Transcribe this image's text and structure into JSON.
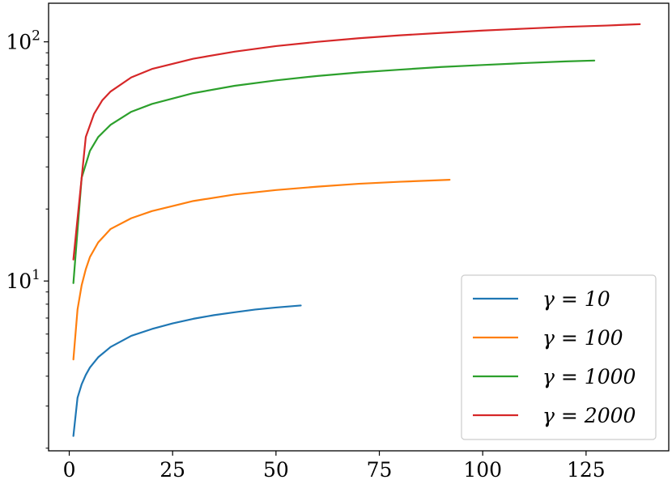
{
  "chart_data": {
    "type": "line",
    "title": "",
    "xlabel": "",
    "ylabel": "",
    "xlim": [
      -5,
      145
    ],
    "ylim": [
      1.95,
      145
    ],
    "yscale": "log",
    "x_ticks": [
      {
        "value": 0,
        "label": "0"
      },
      {
        "value": 25,
        "label": "25"
      },
      {
        "value": 50,
        "label": "50"
      },
      {
        "value": 75,
        "label": "75"
      },
      {
        "value": 100,
        "label": "100"
      },
      {
        "value": 125,
        "label": "125"
      }
    ],
    "y_major_ticks": [
      {
        "value": 10,
        "base": "10",
        "exp": "1"
      },
      {
        "value": 100,
        "base": "10",
        "exp": "2"
      }
    ],
    "y_minor_ticks": [
      2,
      3,
      4,
      5,
      6,
      7,
      8,
      9,
      20,
      30,
      40,
      50,
      60,
      70,
      80,
      90
    ],
    "grid": false,
    "legend_position": "bottom-right",
    "series": [
      {
        "name": "γ = 10",
        "color": "#1f77b4",
        "x": [
          1,
          2,
          3,
          4,
          5,
          7,
          10,
          15,
          20,
          25,
          30,
          35,
          40,
          45,
          50,
          56
        ],
        "y": [
          2.25,
          3.25,
          3.7,
          4.05,
          4.35,
          4.8,
          5.3,
          5.9,
          6.3,
          6.65,
          6.95,
          7.2,
          7.4,
          7.6,
          7.75,
          7.9
        ]
      },
      {
        "name": "γ = 100",
        "color": "#ff7f0e",
        "x": [
          1,
          2,
          3,
          4,
          5,
          7,
          10,
          15,
          20,
          30,
          40,
          50,
          60,
          70,
          80,
          92
        ],
        "y": [
          4.7,
          7.6,
          9.6,
          11.2,
          12.6,
          14.5,
          16.5,
          18.3,
          19.6,
          21.6,
          23.0,
          24.0,
          24.8,
          25.5,
          26.0,
          26.5
        ]
      },
      {
        "name": "γ = 1000",
        "color": "#2ca02c",
        "x": [
          1,
          3,
          5,
          7,
          10,
          15,
          20,
          30,
          40,
          50,
          60,
          70,
          80,
          90,
          100,
          110,
          120,
          127
        ],
        "y": [
          9.8,
          27,
          35,
          40,
          45,
          51,
          55,
          61,
          65.5,
          69,
          72,
          74.5,
          76.5,
          78.5,
          80,
          81.5,
          82.8,
          83.5
        ]
      },
      {
        "name": "γ = 2000",
        "color": "#d62728",
        "x": [
          1,
          4,
          6,
          8,
          10,
          15,
          20,
          30,
          40,
          50,
          60,
          70,
          80,
          90,
          100,
          110,
          120,
          130,
          138
        ],
        "y": [
          12.3,
          40,
          50,
          57,
          62,
          71,
          77,
          85,
          91,
          96,
          100,
          103.5,
          106.5,
          109,
          111.5,
          113.5,
          115.5,
          117,
          118.5
        ]
      }
    ]
  }
}
